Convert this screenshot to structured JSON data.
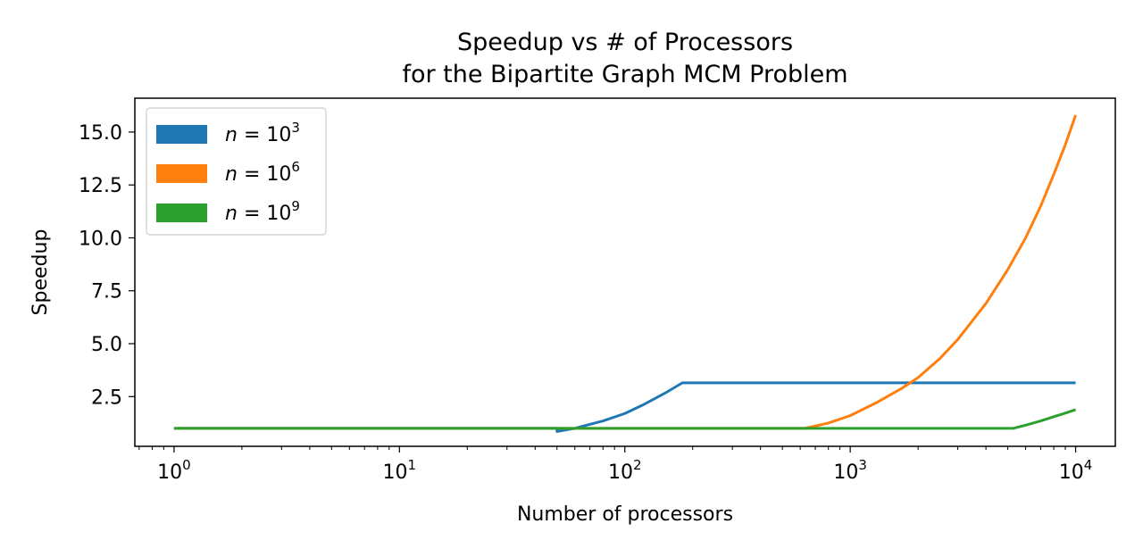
{
  "chart_data": {
    "type": "line",
    "title_line1": "Speedup vs # of Processors",
    "title_line2": "for the Bipartite Graph MCM Problem",
    "xlabel": "Number of processors",
    "ylabel": "Speedup",
    "x_scale": "log",
    "xlim": [
      0.67,
      15000
    ],
    "ylim": [
      0.15,
      16.6
    ],
    "x_ticks": [
      {
        "value": 1,
        "base": "10",
        "exp": "0"
      },
      {
        "value": 10,
        "base": "10",
        "exp": "1"
      },
      {
        "value": 100,
        "base": "10",
        "exp": "2"
      },
      {
        "value": 1000,
        "base": "10",
        "exp": "3"
      },
      {
        "value": 10000,
        "base": "10",
        "exp": "4"
      }
    ],
    "y_ticks": [
      {
        "value": 2.5,
        "label": "2.5"
      },
      {
        "value": 5.0,
        "label": "5.0"
      },
      {
        "value": 7.5,
        "label": "7.5"
      },
      {
        "value": 10.0,
        "label": "10.0"
      },
      {
        "value": 12.5,
        "label": "12.5"
      },
      {
        "value": 15.0,
        "label": "15.0"
      }
    ],
    "grid": false,
    "legend_position": "top-left",
    "series": [
      {
        "name_var": "n",
        "name_eq": " = 10",
        "name_exp": "3",
        "color": "#1f77b4",
        "points": [
          [
            1,
            1.0
          ],
          [
            50,
            1.0
          ],
          [
            50,
            0.85
          ],
          [
            60,
            1.0
          ],
          [
            80,
            1.35
          ],
          [
            100,
            1.7
          ],
          [
            120,
            2.1
          ],
          [
            150,
            2.65
          ],
          [
            180,
            3.15
          ],
          [
            10000,
            3.15
          ]
        ]
      },
      {
        "name_var": "n",
        "name_eq": " = 10",
        "name_exp": "6",
        "color": "#ff7f0e",
        "points": [
          [
            1,
            1.0
          ],
          [
            630,
            1.0
          ],
          [
            800,
            1.25
          ],
          [
            1000,
            1.6
          ],
          [
            1300,
            2.2
          ],
          [
            1700,
            2.9
          ],
          [
            2000,
            3.4
          ],
          [
            2500,
            4.3
          ],
          [
            3000,
            5.2
          ],
          [
            4000,
            6.9
          ],
          [
            5000,
            8.5
          ],
          [
            6000,
            10.0
          ],
          [
            7000,
            11.5
          ],
          [
            8000,
            13.0
          ],
          [
            9000,
            14.4
          ],
          [
            10000,
            15.8
          ]
        ]
      },
      {
        "name_var": "n",
        "name_eq": " = 10",
        "name_exp": "9",
        "color": "#2ca02c",
        "points": [
          [
            1,
            1.0
          ],
          [
            5300,
            1.0
          ],
          [
            6000,
            1.15
          ],
          [
            7000,
            1.35
          ],
          [
            8000,
            1.55
          ],
          [
            9000,
            1.72
          ],
          [
            10000,
            1.88
          ]
        ]
      }
    ]
  }
}
